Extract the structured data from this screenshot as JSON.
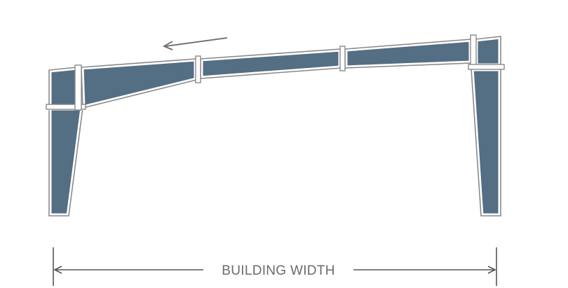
{
  "diagram": {
    "dimension_label": "BUILDING WIDTH"
  },
  "colors": {
    "member_fill": "#546e84",
    "member_outline": "#8a8a8a",
    "dimension_line": "#555555",
    "label": "#6b6b6b",
    "background": "#ffffff"
  }
}
